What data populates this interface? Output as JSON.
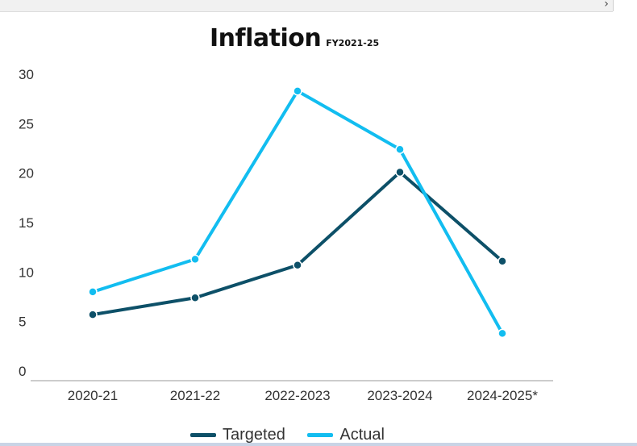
{
  "window": {
    "scroll_icon": "chevron-right-icon",
    "scroll_glyph": "›"
  },
  "chart_data": {
    "type": "line",
    "title": "Inflation",
    "subtitle": "FY2021-25",
    "categories": [
      "2020-21",
      "2021-22",
      "2022-2023",
      "2023-2024",
      "2024-2025*"
    ],
    "series": [
      {
        "name": "Targeted",
        "color": "#0d5068",
        "values": [
          5.7,
          7.4,
          10.7,
          20.1,
          11.1
        ]
      },
      {
        "name": "Actual",
        "color": "#12bdf0",
        "values": [
          8.0,
          11.3,
          28.3,
          22.4,
          3.8
        ]
      }
    ],
    "ylim": [
      0,
      30
    ],
    "yticks": [
      0,
      5,
      10,
      15,
      20,
      25,
      30
    ],
    "grid": false,
    "legend_position": "bottom"
  }
}
